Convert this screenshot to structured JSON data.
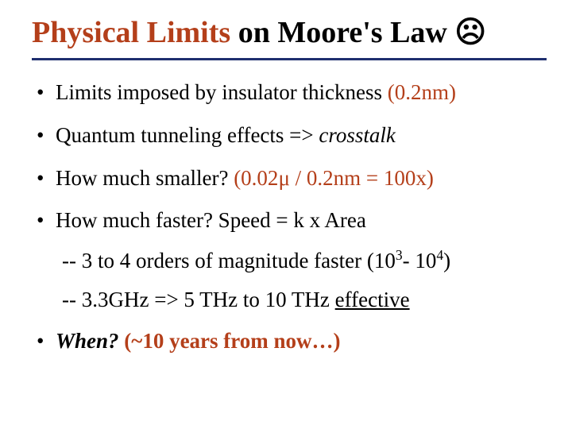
{
  "title": {
    "accent_text": "Physical Limits",
    "rest_text": " on Moore's Law ",
    "face_glyph": "☹"
  },
  "colors": {
    "accent": "#b43f1a",
    "rule": "#1f2f6f",
    "text": "#000000",
    "background": "#ffffff"
  },
  "bullets": [
    {
      "pre": "Limits imposed by insulator thickness ",
      "red": "(0.2nm)"
    },
    {
      "pre": "Quantum tunneling effects => ",
      "ital": "crosstalk"
    },
    {
      "pre": "How much smaller? ",
      "red_a": "(0.02",
      "red_mu": "μ",
      "red_b": " / 0.2nm = 100x)"
    },
    {
      "pre": "How much faster?  Speed = k x Area"
    }
  ],
  "subs": [
    {
      "dash": "-- ",
      "a": "3 to 4 orders of magnitude faster (10",
      "sup1": "3",
      "mid": "- 10",
      "sup2": "4",
      "end": ")"
    },
    {
      "dash": "-- ",
      "a": "3.3GHz  => 5 THz to 10 THz ",
      "under": "effective"
    }
  ],
  "final": {
    "when": "When?",
    "paren": "  (~10 years from now…)"
  },
  "typography": {
    "title_fontsize": 38,
    "body_fontsize": 27,
    "font_family": "Times New Roman"
  }
}
